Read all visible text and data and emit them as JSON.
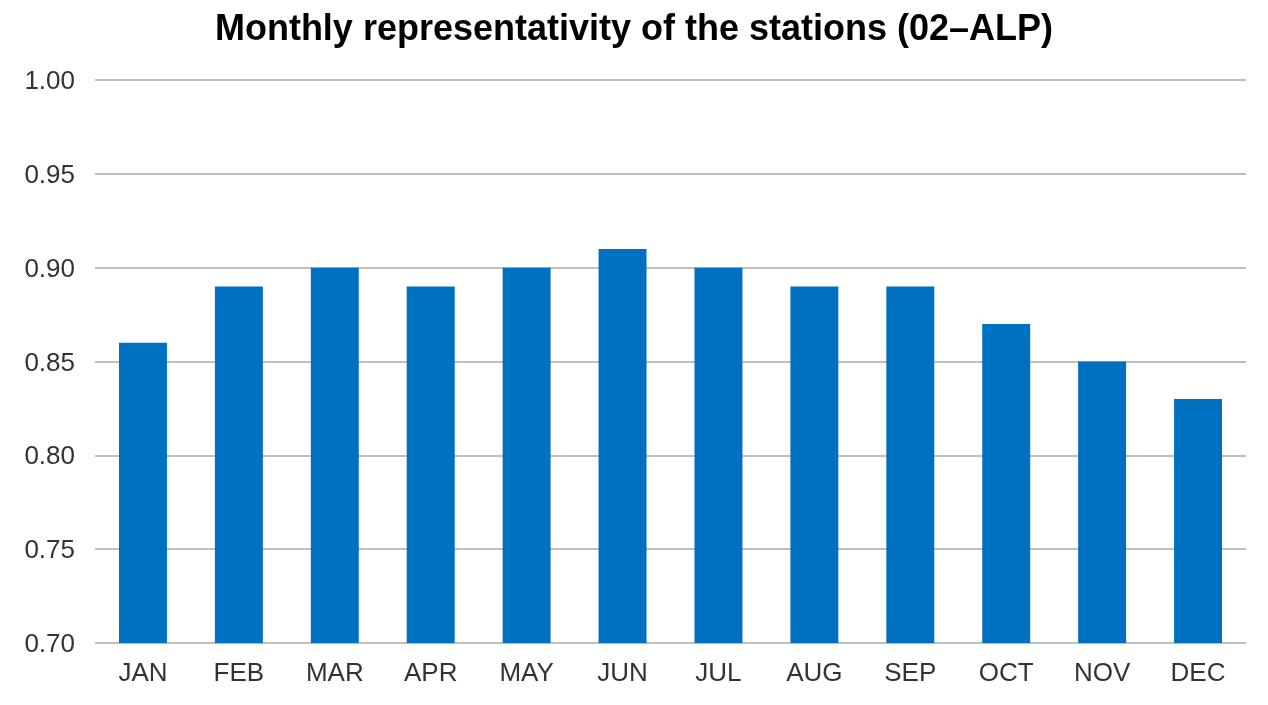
{
  "chart_data": {
    "type": "bar",
    "title": "Monthly representativity of the stations (02–ALP)",
    "categories": [
      "JAN",
      "FEB",
      "MAR",
      "APR",
      "MAY",
      "JUN",
      "JUL",
      "AUG",
      "SEP",
      "OCT",
      "NOV",
      "DEC"
    ],
    "values": [
      0.86,
      0.89,
      0.9,
      0.89,
      0.9,
      0.91,
      0.9,
      0.89,
      0.89,
      0.87,
      0.85,
      0.83
    ],
    "color": "#0070c0",
    "ylim": [
      0.7,
      1.0
    ],
    "yticks": [
      {
        "value": 0.7,
        "label": "0.70"
      },
      {
        "value": 0.75,
        "label": "0.75"
      },
      {
        "value": 0.8,
        "label": "0.80"
      },
      {
        "value": 0.85,
        "label": "0.85"
      },
      {
        "value": 0.9,
        "label": "0.90"
      },
      {
        "value": 0.95,
        "label": "0.95"
      },
      {
        "value": 1.0,
        "label": "1.00"
      }
    ],
    "grid": "y"
  }
}
